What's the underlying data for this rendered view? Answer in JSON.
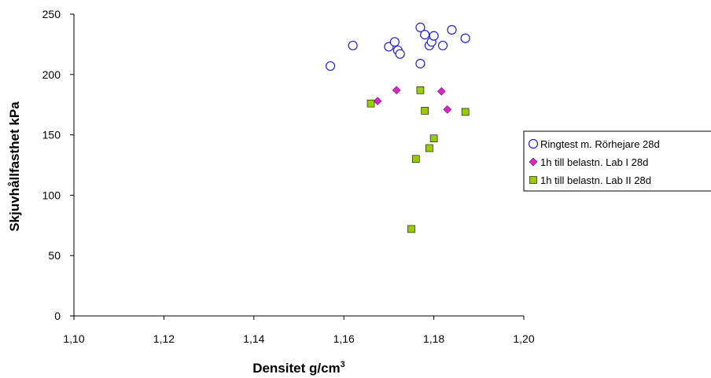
{
  "chart_data": {
    "type": "scatter",
    "xlabel": "Densitet g/cm",
    "xlabel_superscript": "3",
    "ylabel": "Skjuvhållfasthet kPa",
    "xlim": [
      1.1,
      1.2
    ],
    "ylim": [
      0,
      250
    ],
    "x_ticks": [
      "1,10",
      "1,12",
      "1,14",
      "1,16",
      "1,18",
      "1,20"
    ],
    "y_ticks": [
      "0",
      "50",
      "100",
      "150",
      "200",
      "250"
    ],
    "grid": false,
    "legend_position": "right",
    "series": [
      {
        "name": "Ringtest m. Rörhejare 28d",
        "marker": "circle-open",
        "color": "#1f1fd6",
        "points": [
          {
            "x": 1.157,
            "y": 207
          },
          {
            "x": 1.162,
            "y": 224
          },
          {
            "x": 1.17,
            "y": 223
          },
          {
            "x": 1.1713,
            "y": 227
          },
          {
            "x": 1.172,
            "y": 220
          },
          {
            "x": 1.1725,
            "y": 217
          },
          {
            "x": 1.177,
            "y": 239
          },
          {
            "x": 1.177,
            "y": 209
          },
          {
            "x": 1.178,
            "y": 233
          },
          {
            "x": 1.179,
            "y": 224
          },
          {
            "x": 1.1795,
            "y": 227
          },
          {
            "x": 1.18,
            "y": 232
          },
          {
            "x": 1.182,
            "y": 224
          },
          {
            "x": 1.184,
            "y": 237
          },
          {
            "x": 1.187,
            "y": 230
          }
        ]
      },
      {
        "name": "1h till belastn. Lab I 28d",
        "marker": "diamond",
        "color": "#e020c8",
        "points": [
          {
            "x": 1.1675,
            "y": 178
          },
          {
            "x": 1.1717,
            "y": 187
          },
          {
            "x": 1.1817,
            "y": 186
          },
          {
            "x": 1.183,
            "y": 171
          }
        ]
      },
      {
        "name": "1h till belastn. Lab II 28d",
        "marker": "square",
        "color": "#99cc00",
        "points": [
          {
            "x": 1.166,
            "y": 176
          },
          {
            "x": 1.175,
            "y": 72
          },
          {
            "x": 1.176,
            "y": 130
          },
          {
            "x": 1.177,
            "y": 187
          },
          {
            "x": 1.178,
            "y": 170
          },
          {
            "x": 1.179,
            "y": 139
          },
          {
            "x": 1.18,
            "y": 147
          },
          {
            "x": 1.187,
            "y": 169
          }
        ]
      }
    ]
  }
}
